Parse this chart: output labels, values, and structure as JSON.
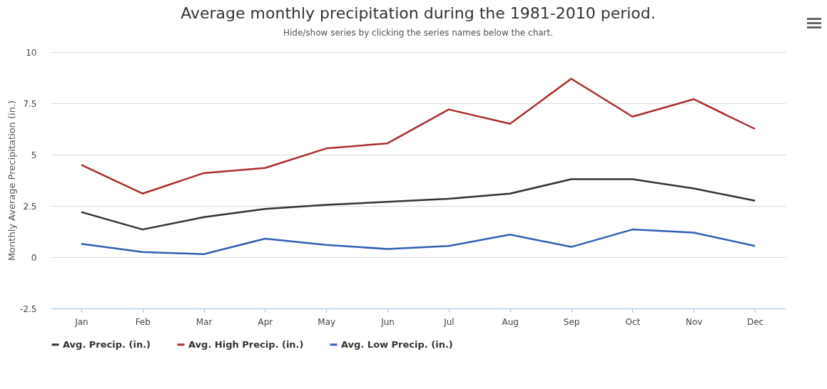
{
  "chart_data": {
    "type": "line",
    "title": "Average monthly precipitation during the 1981-2010 period.",
    "subtitle": "Hide/show series by clicking the series names below the chart.",
    "ylabel": "Monthly Average Precipitation (in.)",
    "categories": [
      "Jan",
      "Feb",
      "Mar",
      "Apr",
      "May",
      "Jun",
      "Jul",
      "Aug",
      "Sep",
      "Oct",
      "Nov",
      "Dec"
    ],
    "series": [
      {
        "name": "Avg. Precip. (in.)",
        "color": "#333333",
        "values": [
          2.2,
          1.35,
          1.95,
          2.35,
          2.55,
          2.7,
          2.85,
          3.1,
          3.8,
          3.8,
          3.35,
          2.75
        ]
      },
      {
        "name": "Avg. High Precip. (in.)",
        "color": "#aa2e2e",
        "values": [
          4.5,
          3.1,
          4.1,
          4.35,
          5.3,
          5.55,
          7.2,
          6.5,
          8.7,
          6.85,
          7.7,
          6.25
        ]
      },
      {
        "name": "Avg. Low Precip. (in.)",
        "color": "#2f5fb3",
        "values": [
          0.65,
          0.25,
          0.15,
          0.9,
          0.6,
          0.4,
          0.55,
          1.1,
          0.5,
          1.35,
          1.2,
          0.55
        ]
      }
    ],
    "ylim": [
      -2.5,
      10
    ],
    "yticks": [
      -2.5,
      0,
      2.5,
      5,
      7.5,
      10
    ],
    "grid": "y",
    "legend": "bottom",
    "marker": "none",
    "line_style": "solid"
  }
}
